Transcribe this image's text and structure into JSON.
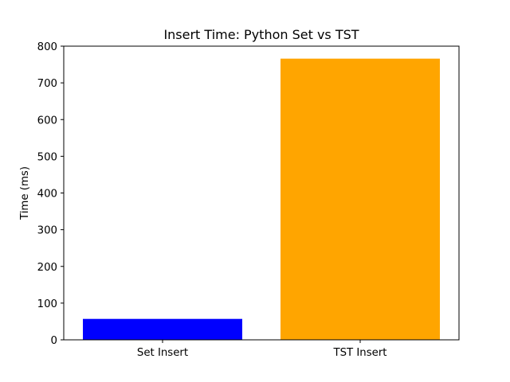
{
  "chart_data": {
    "type": "bar",
    "title": "Insert Time: Python Set vs TST",
    "xlabel": "",
    "ylabel": "Time (ms)",
    "categories": [
      "Set Insert",
      "TST Insert"
    ],
    "values": [
      57,
      766
    ],
    "colors": [
      "#0000ff",
      "#ffa500"
    ],
    "ylim": [
      0,
      800
    ],
    "yticks": [
      0,
      100,
      200,
      300,
      400,
      500,
      600,
      700,
      800
    ],
    "grid": false,
    "legend": false
  }
}
